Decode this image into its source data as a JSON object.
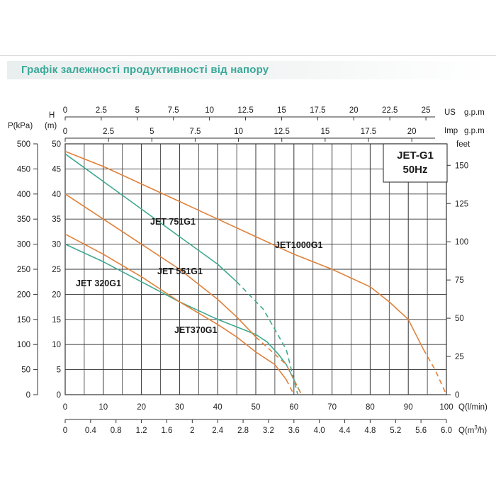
{
  "header": {
    "title": "Графік залежності продуктивності від напору"
  },
  "chart_data": {
    "type": "line",
    "title_box": {
      "model": "JET-G1",
      "frequency": "50Hz"
    },
    "axes": {
      "x_lmin": {
        "label": "Q(l/min)",
        "ticks": [
          "0",
          "10",
          "20",
          "30",
          "40",
          "50",
          "60",
          "70",
          "80",
          "90",
          "100"
        ],
        "range": [
          0,
          100
        ]
      },
      "x_m3h": {
        "label": "Q(m³/h)",
        "ticks": [
          "0",
          "0.4",
          "0.8",
          "1.2",
          "1.6",
          "2",
          "2.4",
          "2.8",
          "3.2",
          "3.6",
          "4.0",
          "4.4",
          "4.8",
          "5.2",
          "5.6",
          "6.0"
        ],
        "range": [
          0,
          6.0
        ]
      },
      "x_usgpm": {
        "label_prefix": "US",
        "label": "g.p.m",
        "ticks": [
          "0",
          "2.5",
          "5",
          "7.5",
          "10",
          "12.5",
          "15",
          "17.5",
          "20",
          "22.5",
          "25"
        ]
      },
      "x_impgpm": {
        "label_prefix": "Imp",
        "label": "g.p.m",
        "ticks": [
          "0",
          "2.5",
          "5",
          "7.5",
          "10",
          "12.5",
          "15",
          "17.5",
          "20"
        ]
      },
      "y_head_m": {
        "label_top": "H",
        "label_bottom": "(m)",
        "ticks": [
          "0",
          "5",
          "10",
          "15",
          "20",
          "25",
          "30",
          "35",
          "40",
          "45",
          "50"
        ],
        "range": [
          0,
          50
        ]
      },
      "y_pressure_kpa": {
        "label": "P(kPa)",
        "ticks": [
          "0",
          "50",
          "100",
          "150",
          "200",
          "250",
          "300",
          "350",
          "400",
          "450",
          "500"
        ]
      },
      "y_feet": {
        "label": "feet",
        "ticks": [
          "0",
          "25",
          "50",
          "75",
          "100",
          "125",
          "150"
        ]
      }
    },
    "grid": true,
    "colors": {
      "orange": "#e0813a",
      "teal": "#3fa88f",
      "grid": "#333333"
    },
    "series": [
      {
        "name": "JET 320G1",
        "color": "#3fa88f",
        "points": [
          [
            0,
            30
          ],
          [
            10,
            26.5
          ],
          [
            20,
            22.5
          ],
          [
            30,
            18.5
          ],
          [
            40,
            15
          ],
          [
            50,
            12
          ],
          [
            53,
            10.5
          ],
          [
            56,
            8
          ],
          [
            58,
            6
          ],
          [
            60,
            3
          ]
        ],
        "dashed": [
          [
            60,
            3
          ],
          [
            62,
            0
          ]
        ]
      },
      {
        "name": "JET370G1",
        "color": "#e0813a",
        "points": [
          [
            0,
            32
          ],
          [
            10,
            28
          ],
          [
            20,
            23.5
          ],
          [
            30,
            18.5
          ],
          [
            40,
            14
          ],
          [
            45,
            11.5
          ],
          [
            50,
            8.5
          ],
          [
            55,
            6
          ],
          [
            58,
            3
          ]
        ],
        "dashed": [
          [
            58,
            3
          ],
          [
            60,
            0
          ]
        ]
      },
      {
        "name": "JET 551G1",
        "color": "#e0813a",
        "points": [
          [
            0,
            40
          ],
          [
            10,
            35
          ],
          [
            20,
            30
          ],
          [
            30,
            25
          ],
          [
            40,
            19
          ],
          [
            45,
            15.5
          ],
          [
            50,
            11.5
          ]
        ],
        "dashed": [
          [
            50,
            11.5
          ],
          [
            58,
            6
          ],
          [
            62,
            0
          ]
        ]
      },
      {
        "name": "JET 751G1",
        "color": "#3fa88f",
        "points": [
          [
            0,
            48
          ],
          [
            10,
            42.5
          ],
          [
            20,
            37
          ],
          [
            30,
            31.5
          ],
          [
            40,
            26
          ],
          [
            45,
            22.5
          ]
        ],
        "dashed": [
          [
            45,
            22.5
          ],
          [
            52,
            17
          ],
          [
            58,
            9
          ],
          [
            61,
            0
          ]
        ]
      },
      {
        "name": "JET1000G1",
        "color": "#e0813a",
        "points": [
          [
            0,
            48.5
          ],
          [
            10,
            45.5
          ],
          [
            20,
            42
          ],
          [
            30,
            38.5
          ],
          [
            40,
            35
          ],
          [
            50,
            31.5
          ],
          [
            60,
            28
          ],
          [
            70,
            25
          ],
          [
            80,
            21.5
          ],
          [
            85,
            18.5
          ],
          [
            90,
            15
          ],
          [
            94,
            9
          ]
        ],
        "dashed": [
          [
            94,
            9
          ],
          [
            97,
            5
          ],
          [
            100,
            0
          ]
        ]
      }
    ]
  }
}
